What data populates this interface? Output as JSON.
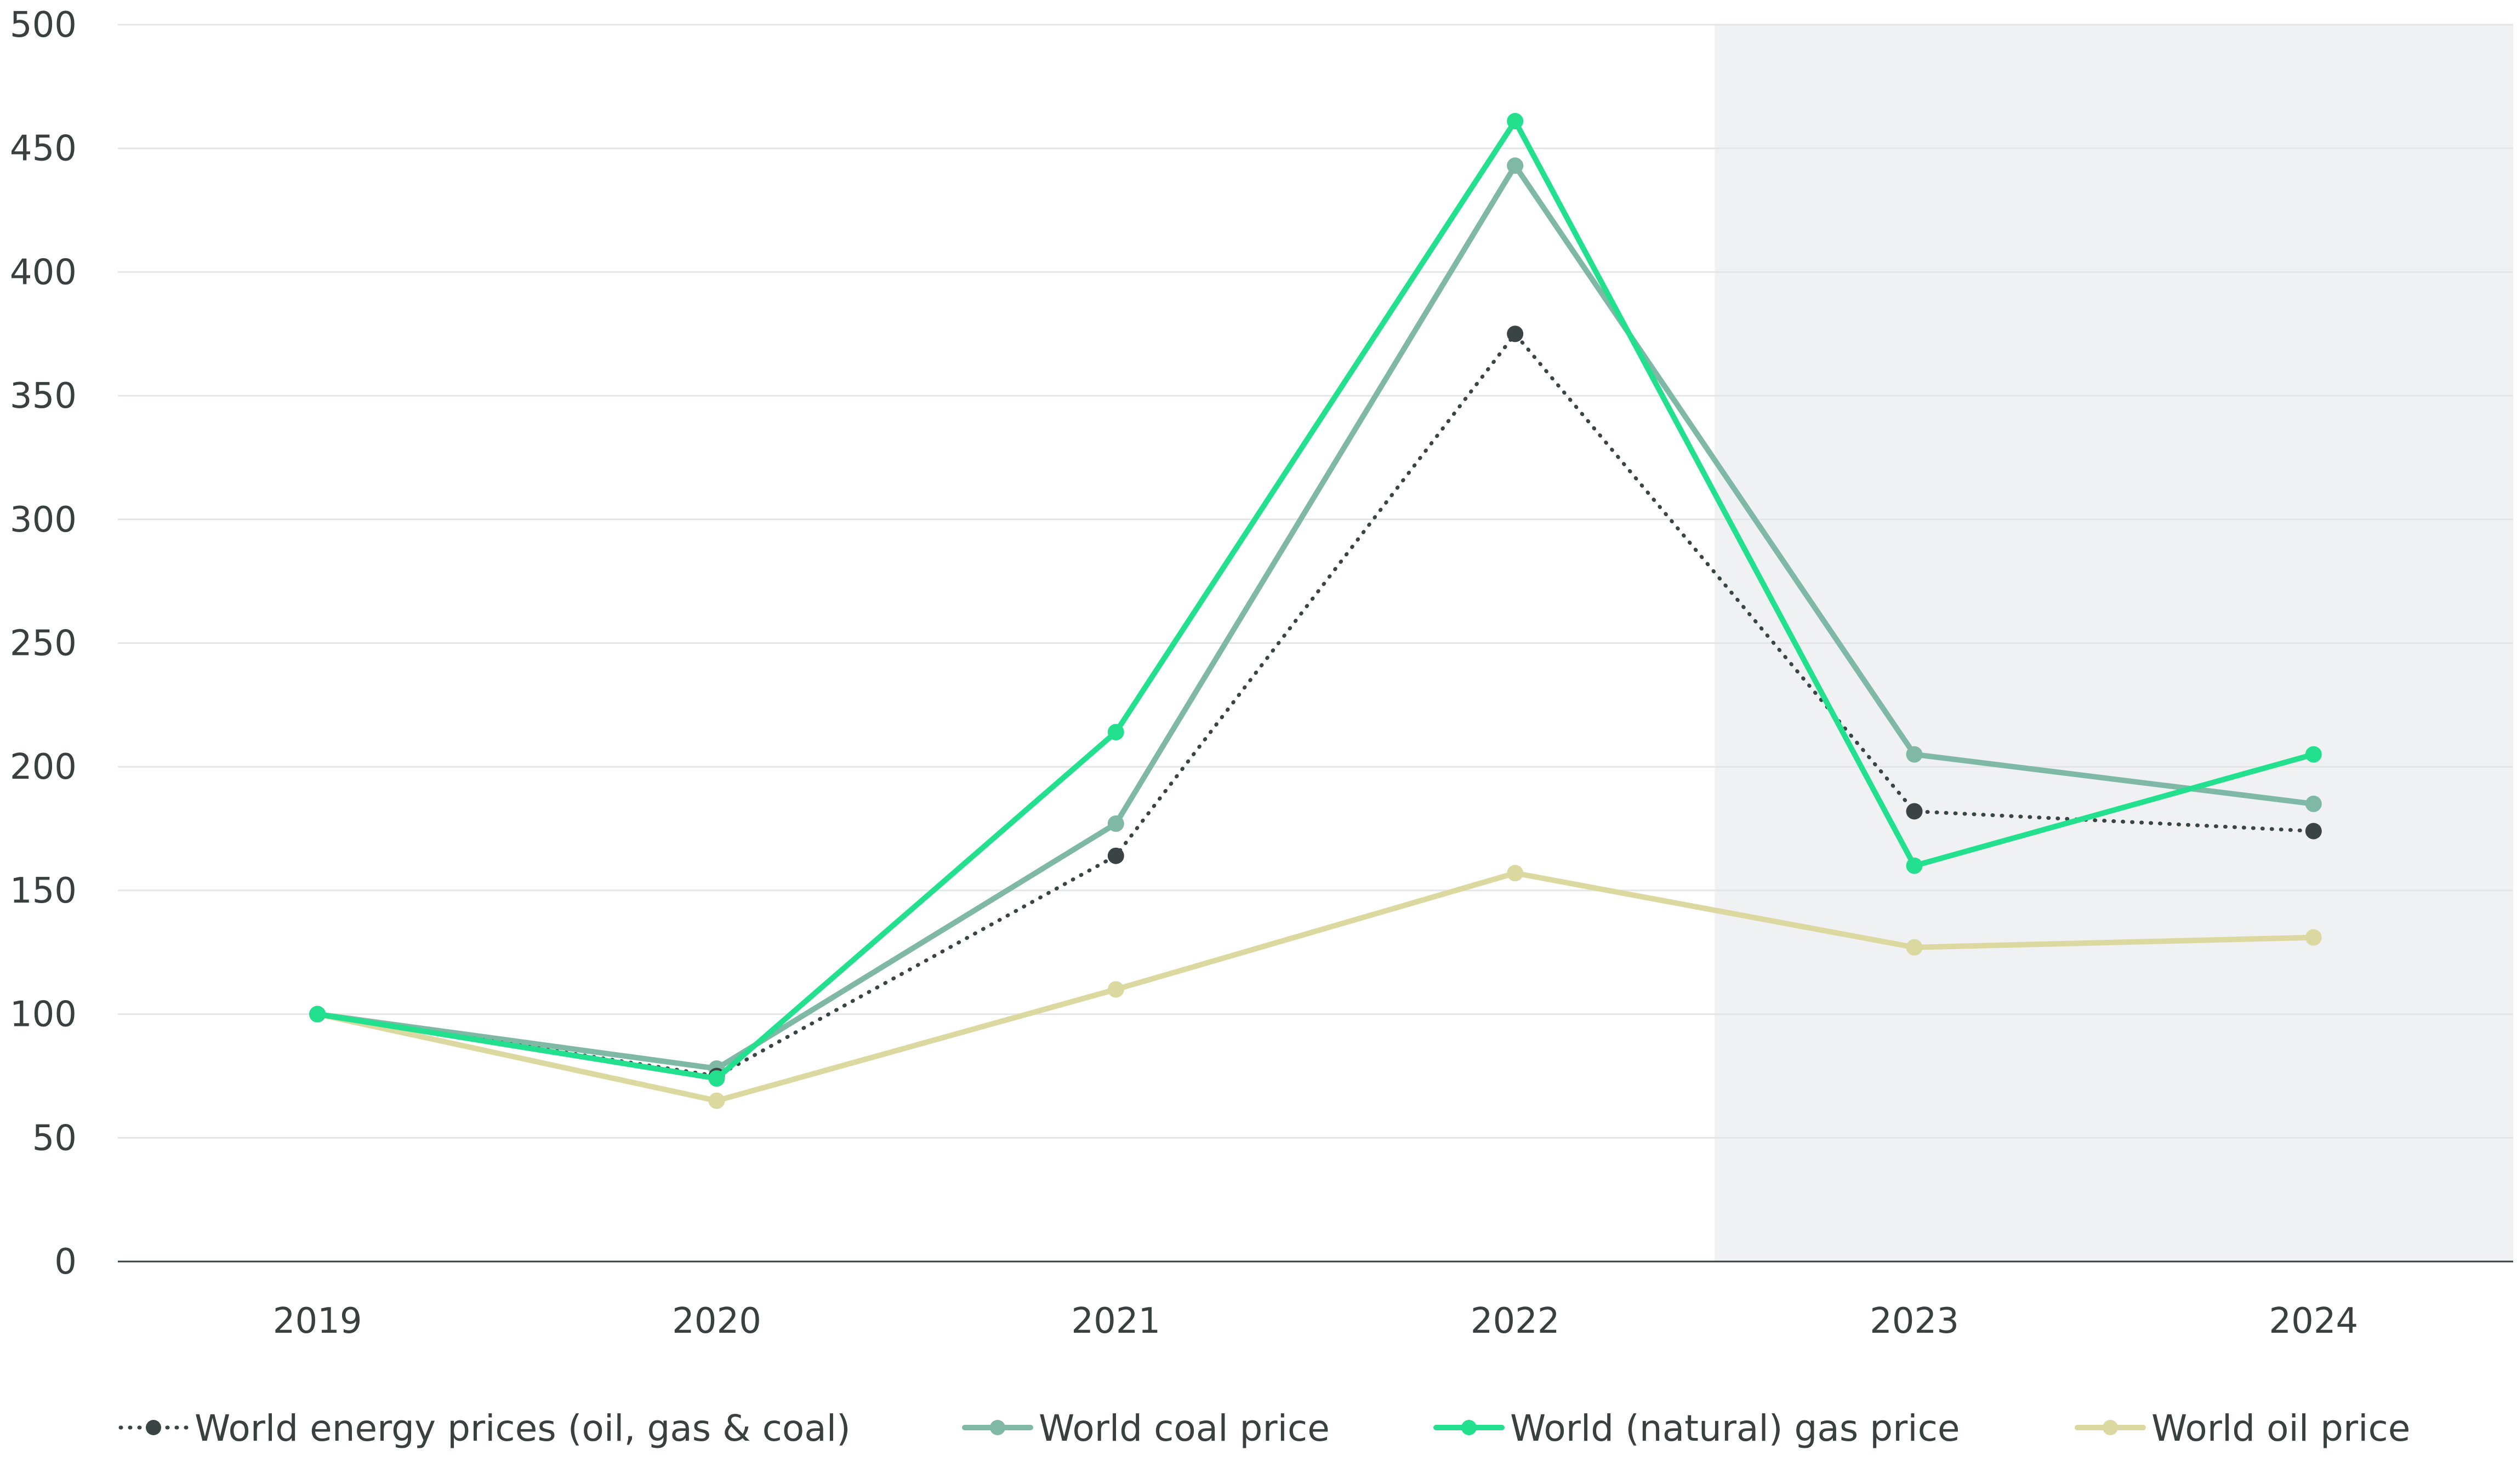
{
  "chart_data": {
    "type": "line",
    "title": "",
    "xlabel": "",
    "ylabel": "",
    "x": [
      "2019",
      "2020",
      "2021",
      "2022",
      "2023",
      "2024"
    ],
    "ylim": [
      0,
      500
    ],
    "yticks": [
      0,
      50,
      100,
      150,
      200,
      250,
      300,
      350,
      400,
      450,
      500
    ],
    "grid": true,
    "legend_position": "bottom",
    "shaded_region": {
      "from": "2023",
      "to": "2024",
      "color": "#eff1f3"
    },
    "series": [
      {
        "name": "World energy prices (oil, gas & coal)",
        "values": [
          100,
          75,
          164,
          375,
          182,
          174
        ],
        "color": "#3a4444",
        "style": "dotted"
      },
      {
        "name": "World coal price",
        "values": [
          100,
          78,
          177,
          443,
          205,
          185
        ],
        "color": "#7fb8a4",
        "style": "solid"
      },
      {
        "name": "World (natural) gas price",
        "values": [
          100,
          74,
          214,
          461,
          160,
          205
        ],
        "color": "#22e08e",
        "style": "solid"
      },
      {
        "name": "World oil price",
        "values": [
          100,
          65,
          110,
          157,
          127,
          131
        ],
        "color": "#dcd9a0",
        "style": "solid"
      }
    ]
  }
}
